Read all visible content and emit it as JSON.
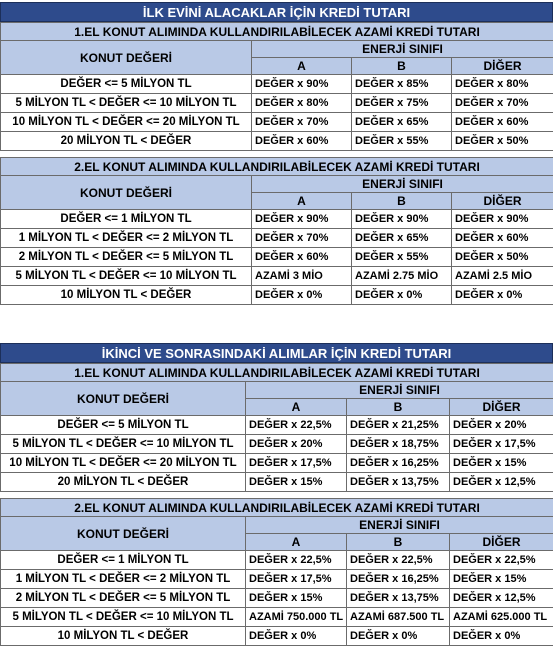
{
  "section1": {
    "title": "İLK EVİNİ ALACAKLAR İÇİN KREDİ TUTARI",
    "table1": {
      "subtitle": "1.EL KONUT ALIMINDA KULLANDIRILABİLECEK AZAMİ KREDİ TUTARI",
      "col_label": "KONUT DEĞERİ",
      "group_label": "ENERJİ SINIFI",
      "cols": [
        "A",
        "B",
        "DİĞER"
      ],
      "rows": [
        {
          "label": "DEĞER <= 5 MİLYON TL",
          "a": "DEĞER x 90%",
          "b": "DEĞER x 85%",
          "c": "DEĞER x 80%"
        },
        {
          "label": "5 MİLYON TL < DEĞER <= 10 MİLYON TL",
          "a": "DEĞER x 80%",
          "b": "DEĞER x 75%",
          "c": "DEĞER x 70%"
        },
        {
          "label": "10 MİLYON TL < DEĞER <= 20 MİLYON TL",
          "a": "DEĞER x 70%",
          "b": "DEĞER x 65%",
          "c": "DEĞER x 60%"
        },
        {
          "label": "20 MİLYON TL < DEĞER",
          "a": "DEĞER x 60%",
          "b": "DEĞER x 55%",
          "c": "DEĞER x 50%"
        }
      ]
    },
    "table2": {
      "subtitle": "2.EL KONUT ALIMINDA KULLANDIRILABİLECEK AZAMİ KREDİ TUTARI",
      "col_label": "KONUT DEĞERİ",
      "group_label": "ENERJİ SINIFI",
      "cols": [
        "A",
        "B",
        "DİĞER"
      ],
      "rows": [
        {
          "label": "DEĞER <= 1 MİLYON TL",
          "a": "DEĞER x 90%",
          "b": "DEĞER x 90%",
          "c": "DEĞER x 90%"
        },
        {
          "label": "1 MİLYON TL < DEĞER <= 2 MİLYON TL",
          "a": "DEĞER x 70%",
          "b": "DEĞER x 65%",
          "c": "DEĞER x 60%"
        },
        {
          "label": "2 MİLYON TL < DEĞER <= 5 MİLYON TL",
          "a": "DEĞER x 60%",
          "b": "DEĞER x 55%",
          "c": "DEĞER x 50%"
        },
        {
          "label": "5 MİLYON TL < DEĞER <= 10 MİLYON TL",
          "a": "AZAMİ 3 MİO",
          "b": "AZAMİ 2.75 MİO",
          "c": "AZAMİ 2.5 MİO"
        },
        {
          "label": "10 MİLYON TL < DEĞER",
          "a": "DEĞER x 0%",
          "b": "DEĞER x 0%",
          "c": "DEĞER x 0%"
        }
      ]
    }
  },
  "section2": {
    "title": "İKİNCİ VE SONRASINDAKİ ALIMLAR İÇİN KREDİ TUTARI",
    "table1": {
      "subtitle": "1.EL KONUT ALIMINDA KULLANDIRILABİLECEK AZAMİ KREDİ TUTARI",
      "col_label": "KONUT DEĞERİ",
      "group_label": "ENERJİ SINIFI",
      "cols": [
        "A",
        "B",
        "DİĞER"
      ],
      "rows": [
        {
          "label": "DEĞER <= 5 MİLYON TL",
          "a": "DEĞER x 22,5%",
          "b": "DEĞER x 21,25%",
          "c": "DEĞER x 20%"
        },
        {
          "label": "5 MİLYON TL < DEĞER <= 10 MİLYON TL",
          "a": "DEĞER x 20%",
          "b": "DEĞER x 18,75%",
          "c": "DEĞER x 17,5%"
        },
        {
          "label": "10 MİLYON TL < DEĞER <= 20 MİLYON TL",
          "a": "DEĞER x 17,5%",
          "b": "DEĞER x 16,25%",
          "c": "DEĞER x 15%"
        },
        {
          "label": "20 MİLYON TL < DEĞER",
          "a": "DEĞER x 15%",
          "b": "DEĞER x 13,75%",
          "c": "DEĞER x 12,5%"
        }
      ]
    },
    "table2": {
      "subtitle": "2.EL KONUT ALIMINDA KULLANDIRILABİLECEK AZAMİ KREDİ TUTARI",
      "col_label": "KONUT DEĞERİ",
      "group_label": "ENERJİ SINIFI",
      "cols": [
        "A",
        "B",
        "DİĞER"
      ],
      "rows": [
        {
          "label": "DEĞER <= 1 MİLYON TL",
          "a": "DEĞER x 22,5%",
          "b": "DEĞER x 22,5%",
          "c": "DEĞER x 22,5%"
        },
        {
          "label": "1 MİLYON TL < DEĞER <= 2 MİLYON TL",
          "a": "DEĞER x 17,5%",
          "b": "DEĞER x 16,25%",
          "c": "DEĞER x 15%"
        },
        {
          "label": "2 MİLYON TL < DEĞER <= 5 MİLYON TL",
          "a": "DEĞER x 15%",
          "b": "DEĞER x 13,75%",
          "c": "DEĞER x 12,5%"
        },
        {
          "label": "5 MİLYON TL < DEĞER <= 10 MİLYON TL",
          "a": "AZAMİ 750.000 TL",
          "b": "AZAMİ 687.500 TL",
          "c": "AZAMİ 625.000 TL"
        },
        {
          "label": "10 MİLYON TL < DEĞER",
          "a": "DEĞER x 0%",
          "b": "DEĞER x 0%",
          "c": "DEĞER x 0%"
        }
      ]
    }
  }
}
